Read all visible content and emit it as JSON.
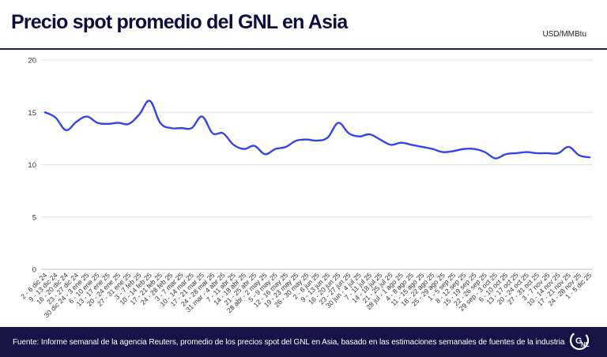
{
  "header": {
    "title": "Precio spot promedio del GNL en Asia",
    "unit": "USD/MMBtu"
  },
  "footer": {
    "source": "Fuente: Informe semanal de la agencia Reuters, promedio de los precios spot del GNL en Asia, basado en las estimaciones semanales de fuentes de la industria",
    "logo_text": "GNL"
  },
  "colors": {
    "line": "#3344ee",
    "title": "#0d0d40",
    "footer_bg": "#141446"
  },
  "chart_data": {
    "type": "line",
    "title": "Precio spot promedio del GNL en Asia",
    "ylabel": "USD/MMBtu",
    "ylim": [
      0,
      20
    ],
    "yticks": [
      0,
      5,
      10,
      15,
      20
    ],
    "grid": "horizontal",
    "categories": [
      "2 - 6 dic 24",
      "9 - 13 dic 24",
      "16 - 20 dic 24",
      "23 - 27 dic 24",
      "30 dic 24 - 3 ene 25",
      "6 - 10 ene 25",
      "13 - 17 ene 25",
      "20 - 24 ene 25",
      "27 - 31 ene 25",
      "3 - 7 feb 25",
      "10 - 14 feb 25",
      "17 - 21 feb 25",
      "24 - 28 feb 25",
      "3 - 7 mar 25",
      "10 - 14 mar 25",
      "17 - 21 mar 25",
      "24 - 28 mar 25",
      "31 mar - 4 abr 25",
      "7 - 11 abr 25",
      "14 - 18 abr 25",
      "21 - 25 abr 25",
      "28 abr - 2 may 25",
      "5 - 9 may 25",
      "12 - 16 may 25",
      "19 - 23 may 25",
      "26 - 30 may 25",
      "2 - 6 jun 25",
      "9 - 13 jun 25",
      "16 - 20 jun 25",
      "23 - 27 jun 25",
      "30 jun - 4 jul 25",
      "7 - 11 jul 25",
      "14 - 18 jul 25",
      "21 - 25 jul 25",
      "28 jul - 1 ago 25",
      "4 - 8 ago 25",
      "11 - 15 ago 25",
      "18 - 22 ago 25",
      "25 - 29 ago 25",
      "1 - 5 sep 25",
      "8 - 12 sep 25",
      "15 - 19 sep 25",
      "22 - 26 sep 25",
      "29 sep - 3 oct 25",
      "6 - 10 oct 25",
      "13 - 17 oct 25",
      "20 - 24 oct 25",
      "27 - 31 oct 25",
      "3 - 7 nov 25",
      "10 - 14 nov 25",
      "17 - 21 nov 25",
      "24 - 28 nov 25",
      "1 - 5 dic 25"
    ],
    "series": [
      {
        "values": [
          15.0,
          14.5,
          13.3,
          14.1,
          14.6,
          14.0,
          13.9,
          14.0,
          13.9,
          14.8,
          16.1,
          14.0,
          13.5,
          13.5,
          13.5,
          14.6,
          13.0,
          13.0,
          11.9,
          11.5,
          11.8,
          11.0,
          11.5,
          11.7,
          12.3,
          12.4,
          12.3,
          12.6,
          14.0,
          13.0,
          12.7,
          12.9,
          12.4,
          11.9,
          12.1,
          11.9,
          11.7,
          11.5,
          11.2,
          11.3,
          11.5,
          11.5,
          11.2,
          10.6,
          11.0,
          11.1,
          11.2,
          11.1,
          11.1,
          11.1,
          11.7,
          10.9,
          10.7
        ]
      }
    ]
  }
}
